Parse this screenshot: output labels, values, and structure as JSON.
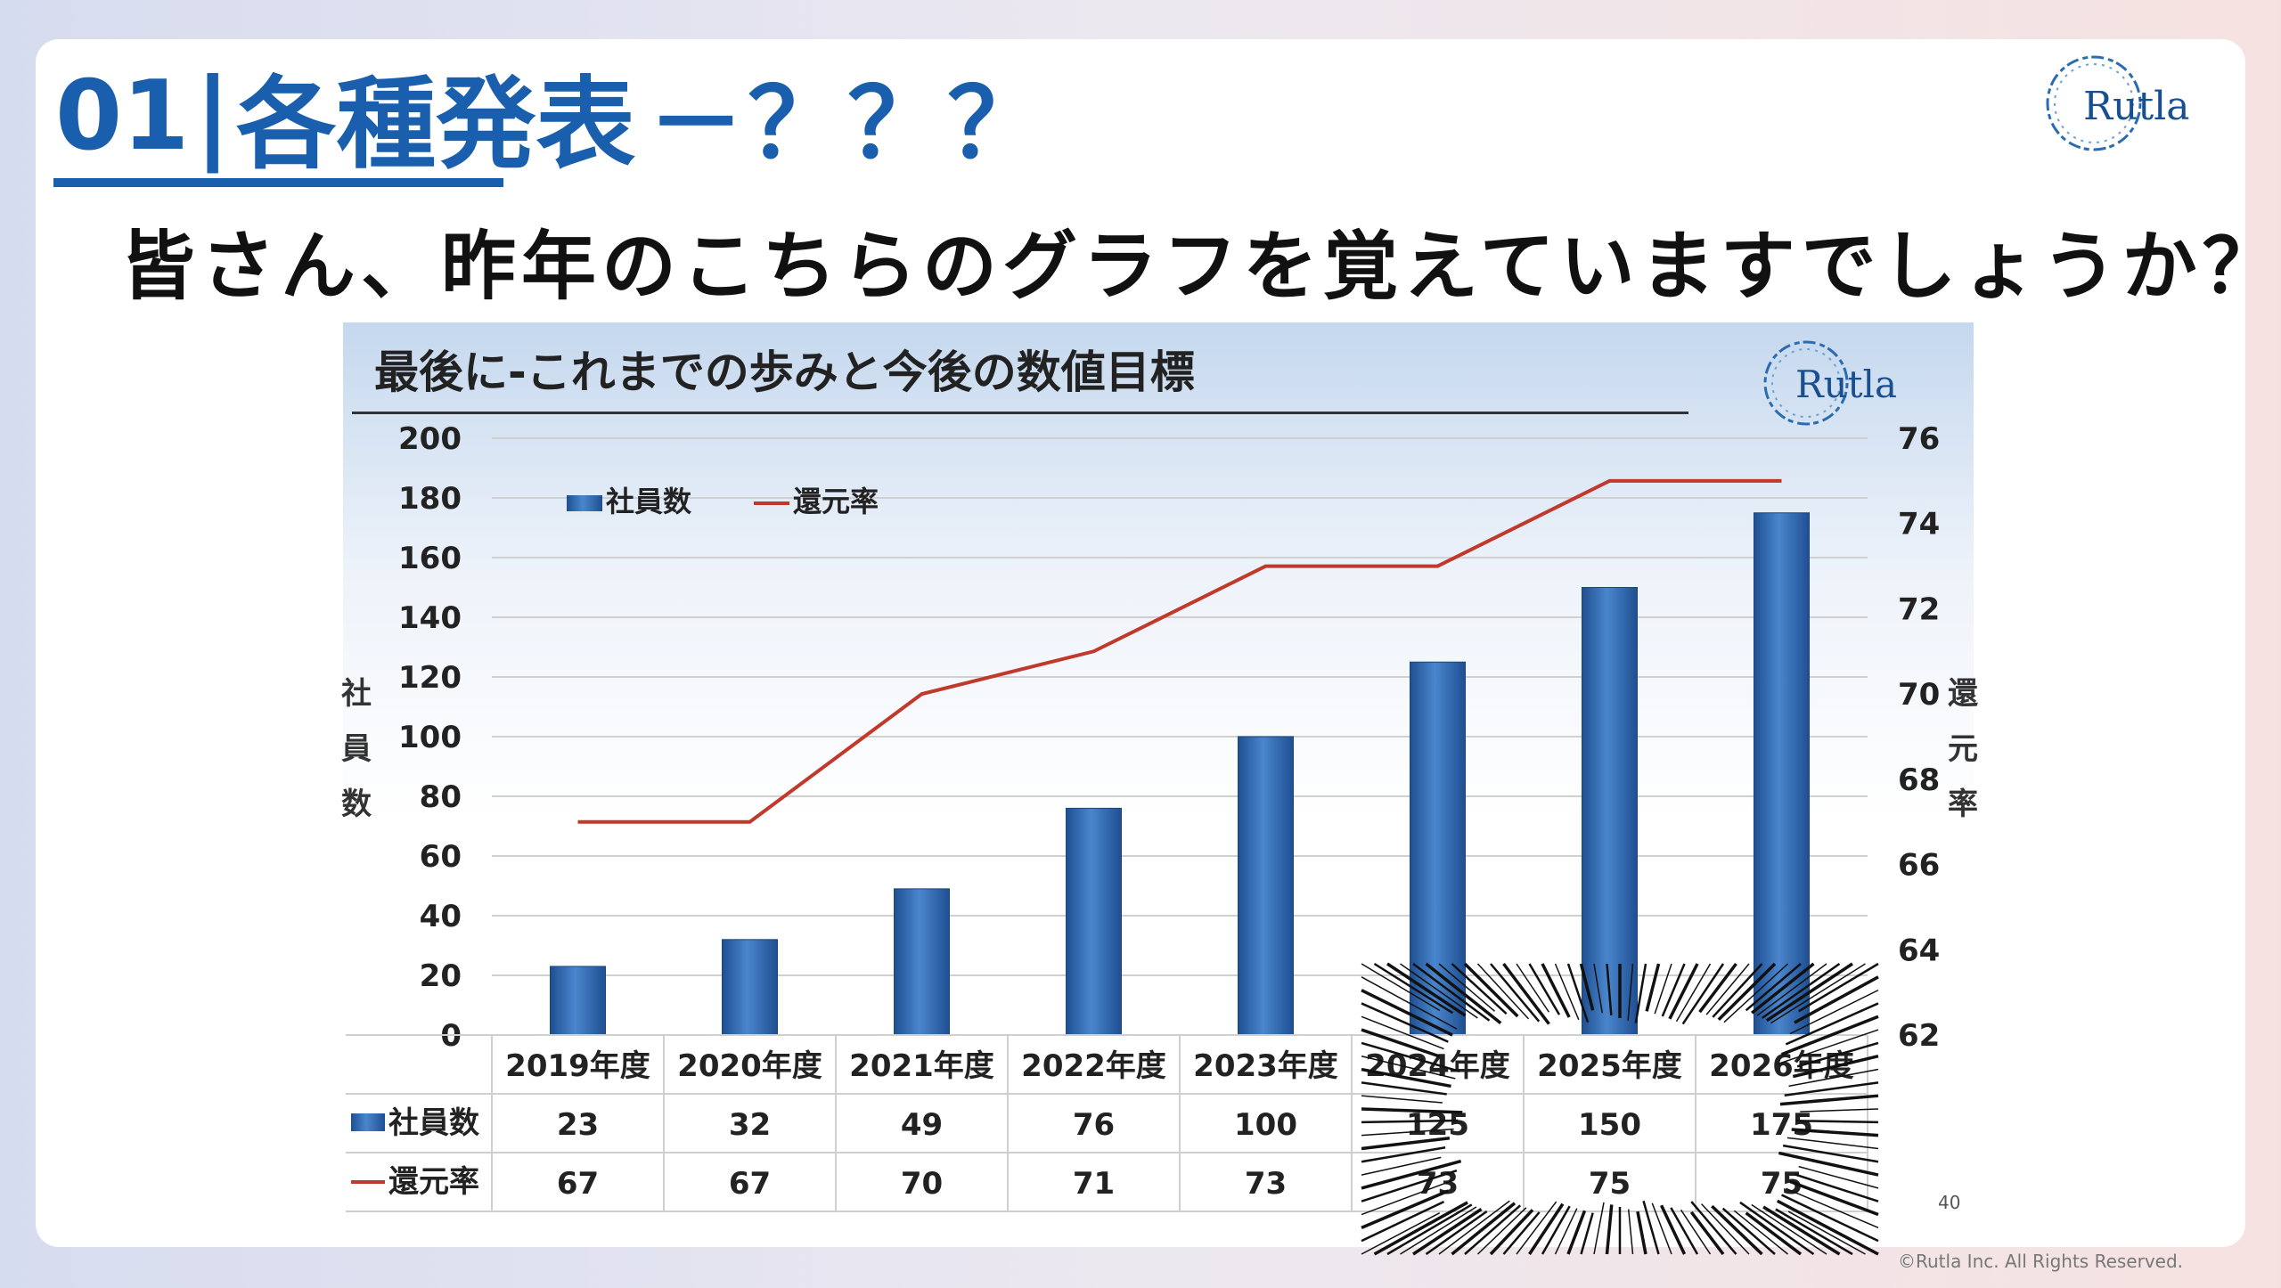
{
  "heading": {
    "number": "01",
    "separator": "|",
    "title": "各種発表",
    "suffix": "－？？？"
  },
  "subtitle": "皆さん、昨年のこちらのグラフを覚えていますでしょうか？",
  "logo_text": "Rutla",
  "copyright": "©Rutla Inc. All Rights Reserved.",
  "colors": {
    "accent": "#1a5fae",
    "bar": "#2f6db6",
    "line": "#c0392b"
  },
  "chart_data": {
    "type": "bar",
    "title": "最後に-これまでの歩みと今後の数値目標",
    "categories": [
      "2019年度",
      "2020年度",
      "2021年度",
      "2022年度",
      "2023年度",
      "2024年度",
      "2025年度",
      "2026年度"
    ],
    "series": [
      {
        "name": "社員数",
        "type": "bar",
        "axis": "left",
        "values": [
          23,
          32,
          49,
          76,
          100,
          125,
          150,
          175
        ]
      },
      {
        "name": "還元率",
        "type": "line",
        "axis": "right",
        "values": [
          67,
          67,
          70,
          71,
          73,
          73,
          75,
          75
        ]
      }
    ],
    "ylabel": "社員数",
    "ylabel2": "還元率",
    "ylim": [
      0,
      200
    ],
    "yticks": [
      0,
      20,
      40,
      60,
      80,
      100,
      120,
      140,
      160,
      180,
      200
    ],
    "y2lim": [
      62,
      76
    ],
    "y2ticks": [
      62,
      64,
      66,
      68,
      70,
      72,
      74,
      76
    ],
    "y2_extra_label": "40",
    "legend": "top-left",
    "grid": true,
    "data_table": true,
    "annotation": "burst lines covering 2024–2026"
  }
}
